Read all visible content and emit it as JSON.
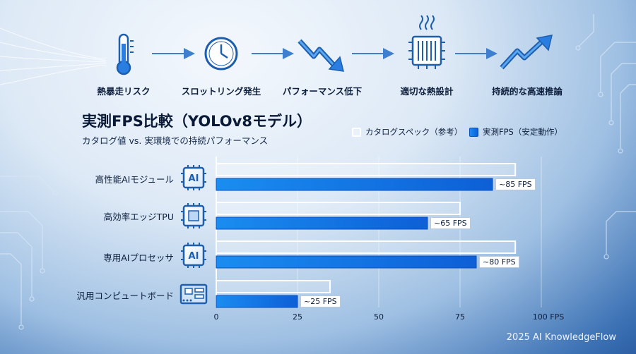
{
  "flow": {
    "steps": [
      {
        "label": "熱暴走リスク",
        "icon": "thermometer-icon"
      },
      {
        "label": "スロットリング発生",
        "icon": "clock-icon"
      },
      {
        "label": "パフォーマンス低下",
        "icon": "downtrend-arrow-icon"
      },
      {
        "label": "適切な熱設計",
        "icon": "cooled-chip-icon"
      },
      {
        "label": "持続的な高速推論",
        "icon": "uptrend-arrow-icon"
      }
    ]
  },
  "chart_data": {
    "type": "bar",
    "orientation": "horizontal",
    "title": "実測FPS比較（YOLOv8モデル）",
    "subtitle": "カタログ値 vs. 実環境での持続パフォーマンス",
    "categories": [
      "高性能AIモジュール",
      "高効率エッジTPU",
      "専用AIプロセッサ",
      "汎用コンピュートボード"
    ],
    "category_icons": [
      "ai-chip-icon",
      "tpu-chip-icon",
      "ai-chip-icon",
      "compute-board-icon"
    ],
    "series": [
      {
        "name": "カタログスペック（参考）",
        "values": [
          92,
          75,
          92,
          35
        ]
      },
      {
        "name": "実測FPS（安定動作）",
        "values": [
          85,
          65,
          80,
          25
        ]
      }
    ],
    "value_labels": [
      "~85 FPS",
      "~65 FPS",
      "~80 FPS",
      "~25 FPS"
    ],
    "xlim": [
      0,
      100
    ],
    "xticks": [
      0,
      25,
      50,
      75,
      100
    ],
    "xtick_labels": [
      "0",
      "25",
      "50",
      "75",
      "100 FPS"
    ],
    "legend_position": "top-right",
    "grid": true
  },
  "colors": {
    "catalog_fill": "rgba(255,255,255,0.22)",
    "catalog_stroke": "#ffffff",
    "measured_start": "#1a8df0",
    "measured_end": "#0d5fd6",
    "icon_blue": "#1d5fae"
  },
  "footer": {
    "text": "2025 AI KnowledgeFlow"
  }
}
